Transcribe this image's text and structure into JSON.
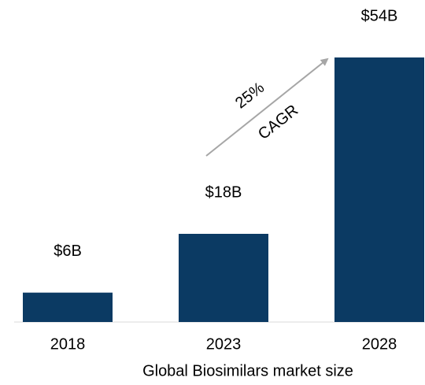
{
  "chart_data": {
    "type": "bar",
    "categories": [
      "2018",
      "2023",
      "2028"
    ],
    "values": [
      6,
      18,
      54
    ],
    "value_labels": [
      "$6B",
      "$18B",
      "$54B"
    ],
    "color": "#0b3a63",
    "x_label": "Global Biosimilars market size",
    "annotations": [
      "25%",
      "CAGR"
    ]
  }
}
